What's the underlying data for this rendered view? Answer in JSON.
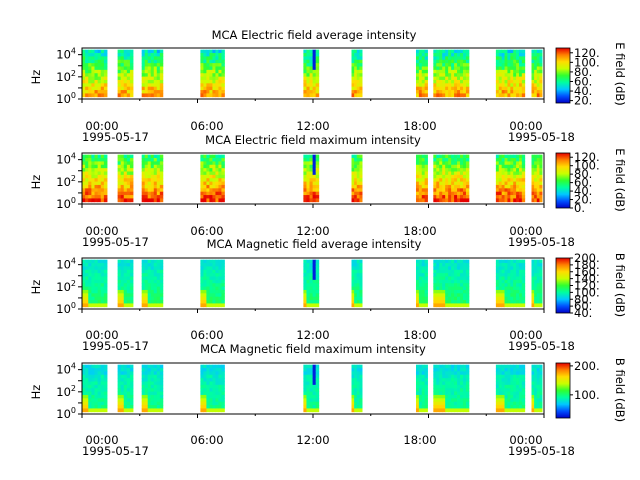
{
  "chart_data": [
    {
      "type": "heatmap",
      "title": "MCA  Electric field average intensity",
      "ylabel": "Hz",
      "colorbar_label": "E field (dB)",
      "colorbar_ticks": [
        "20.",
        "40.",
        "60.",
        "80.",
        "100.",
        "120."
      ],
      "clim": [
        15,
        130
      ],
      "yticks": [
        "10^0",
        "10^2",
        "10^4"
      ],
      "ylim_log10": [
        0,
        4.6
      ],
      "xticks": [
        "00:00",
        "06:00",
        "12:00",
        "18:00",
        "00:00"
      ],
      "xdates": [
        "1995-05-17",
        "1995-05-18"
      ],
      "field": "E",
      "stat": "avg"
    },
    {
      "type": "heatmap",
      "title": "MCA  Electric field maximum intensity",
      "ylabel": "Hz",
      "colorbar_label": "E field (dB)",
      "colorbar_ticks": [
        "0.",
        "20.",
        "40.",
        "60.",
        "80.",
        "100.",
        "120."
      ],
      "clim": [
        0,
        130
      ],
      "yticks": [
        "10^0",
        "10^2",
        "10^4"
      ],
      "ylim_log10": [
        0,
        4.6
      ],
      "xticks": [
        "00:00",
        "06:00",
        "12:00",
        "18:00",
        "00:00"
      ],
      "xdates": [
        "1995-05-17",
        "1995-05-18"
      ],
      "field": "E",
      "stat": "max"
    },
    {
      "type": "heatmap",
      "title": "MCA  Magnetic field average intensity",
      "ylabel": "Hz",
      "colorbar_label": "B field (dB)",
      "colorbar_ticks": [
        "40.",
        "60.",
        "80.",
        "100.",
        "120.",
        "140.",
        "160.",
        "180.",
        "200."
      ],
      "clim": [
        40,
        200
      ],
      "yticks": [
        "10^0",
        "10^2",
        "10^4"
      ],
      "ylim_log10": [
        0,
        4.6
      ],
      "xticks": [
        "00:00",
        "06:00",
        "12:00",
        "18:00",
        "00:00"
      ],
      "xdates": [
        "1995-05-17",
        "1995-05-18"
      ],
      "field": "B",
      "stat": "avg"
    },
    {
      "type": "heatmap",
      "title": "MCA  Magnetic field maximum intensity",
      "ylabel": "Hz",
      "colorbar_label": "B field (dB)",
      "colorbar_ticks": [
        "100.",
        "200."
      ],
      "clim": [
        20,
        210
      ],
      "yticks": [
        "10^0",
        "10^2",
        "10^4"
      ],
      "ylim_log10": [
        0,
        4.6
      ],
      "xticks": [
        "00:00",
        "06:00",
        "12:00",
        "18:00",
        "00:00"
      ],
      "xdates": [
        "1995-05-17",
        "1995-05-18"
      ],
      "field": "B",
      "stat": "max"
    }
  ],
  "data_segments_utc_hours": [
    [
      0.0,
      1.3
    ],
    [
      1.85,
      2.65
    ],
    [
      3.1,
      4.2
    ],
    [
      6.15,
      7.4
    ],
    [
      11.5,
      12.3
    ],
    [
      14.0,
      14.55
    ],
    [
      17.35,
      17.95
    ],
    [
      18.25,
      20.1
    ],
    [
      21.5,
      23.0
    ],
    [
      23.35,
      23.9
    ]
  ],
  "colormap": [
    "#0000c8",
    "#0050ff",
    "#00c8ff",
    "#00ffa0",
    "#30ff30",
    "#c8ff00",
    "#ffdc00",
    "#ff8000",
    "#e60000"
  ]
}
